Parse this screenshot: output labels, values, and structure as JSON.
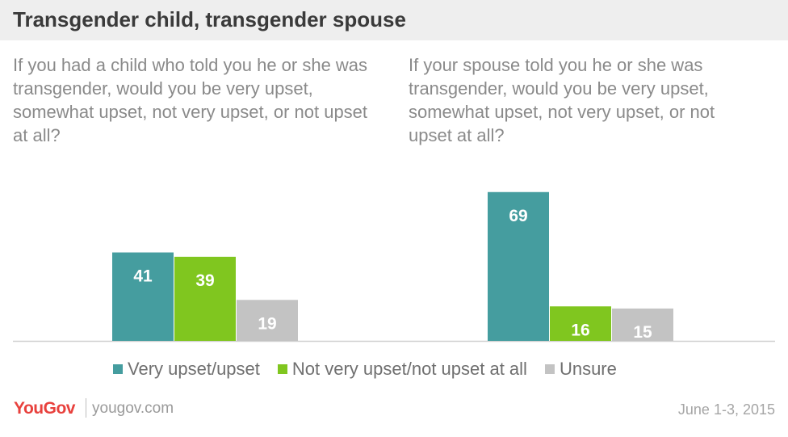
{
  "title": "Transgender child, transgender spouse",
  "colors": {
    "very_upset": "#459d9f",
    "not_upset": "#80c61f",
    "unsure": "#c3c3c3"
  },
  "chart_data": [
    {
      "type": "bar",
      "title": "If you had a child who told you he or she was transgender, would you be very upset, somewhat upset, not very upset, or not upset at all?",
      "series": [
        {
          "name": "Very upset/upset",
          "values": [
            41
          ]
        },
        {
          "name": "Not very upset/not upset at all",
          "values": [
            39
          ]
        },
        {
          "name": "Unsure",
          "values": [
            19
          ]
        }
      ]
    },
    {
      "type": "bar",
      "title": "If your spouse told you he or she was transgender, would you be very upset, somewhat upset, not very upset, or not upset at all?",
      "series": [
        {
          "name": "Very upset/upset",
          "values": [
            69
          ]
        },
        {
          "name": "Not very upset/not upset at all",
          "values": [
            16
          ]
        },
        {
          "name": "Unsure",
          "values": [
            15
          ]
        }
      ]
    }
  ],
  "legend": [
    {
      "label": "Very upset/upset",
      "color": "#459d9f"
    },
    {
      "label": "Not very upset/not upset at all",
      "color": "#80c61f"
    },
    {
      "label": "Unsure",
      "color": "#c3c3c3"
    }
  ],
  "footer": {
    "logo": "YouGov",
    "site": "yougov.com",
    "date": "June 1-3, 2015"
  }
}
